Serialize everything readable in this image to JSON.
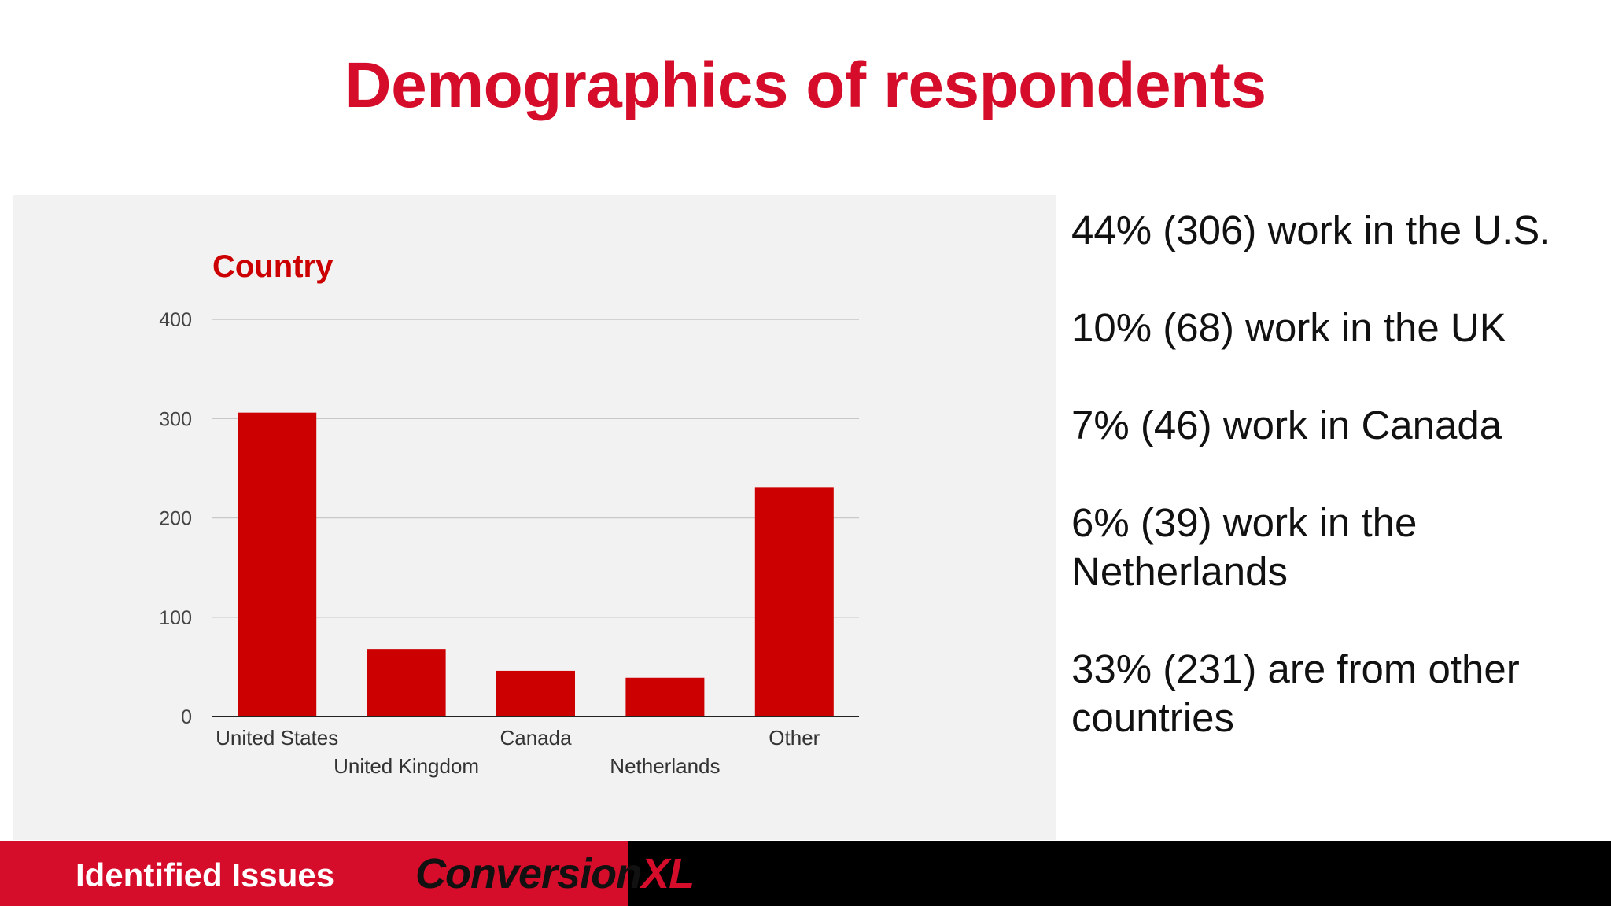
{
  "slide": {
    "title": "Demographics of respondents"
  },
  "stats": [
    "44% (306) work in the U.S.",
    "10% (68) work in the UK",
    "7% (46) work in Canada",
    "6% (39) work in the Netherlands",
    "33% (231) are from other countries"
  ],
  "footer": {
    "label": "Identified Issues",
    "logo_part1": "Conversion",
    "logo_part2": "XL"
  },
  "colors": {
    "accent": "#d50d2a",
    "bar": "#cc0000",
    "footer_dark": "#000000"
  },
  "chart_data": {
    "type": "bar",
    "title": "Country",
    "categories": [
      "United States",
      "United Kingdom",
      "Canada",
      "Netherlands",
      "Other"
    ],
    "values": [
      306,
      68,
      46,
      39,
      231
    ],
    "ylim": [
      0,
      400
    ],
    "yticks": [
      0,
      100,
      200,
      300,
      400
    ],
    "grid": true,
    "xlabel": "",
    "ylabel": ""
  }
}
